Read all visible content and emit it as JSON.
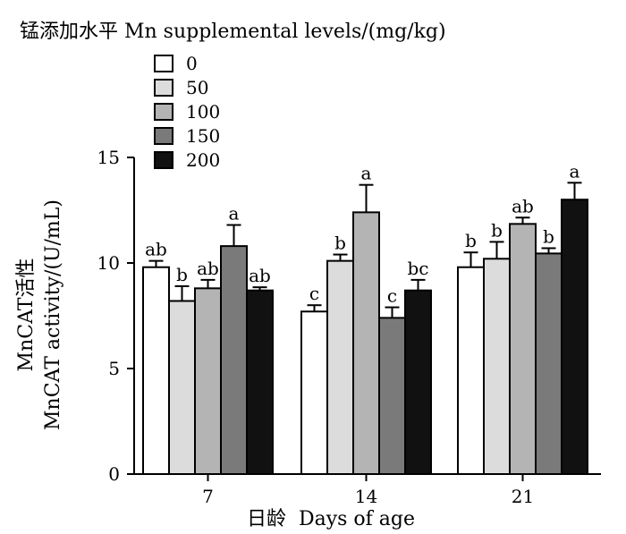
{
  "chart_data": {
    "type": "bar",
    "title": "锰添加水平 Mn supplemental levels/(mg/kg)",
    "ylabel_cn": "MnCAT活性",
    "ylabel_en": "MnCAT activity/(U/mL)",
    "xlabel": "日龄  Days of age",
    "categories": [
      "7",
      "14",
      "21"
    ],
    "ylim": [
      0,
      15
    ],
    "yticks": [
      "0",
      "5",
      "10",
      "15"
    ],
    "grid": false,
    "legend_position": "top-left",
    "series": [
      {
        "name": "0",
        "color": "#ffffff",
        "values": [
          9.8,
          7.7,
          9.8
        ],
        "errors": [
          0.3,
          0.3,
          0.7
        ],
        "letters": [
          "ab",
          "c",
          "b"
        ]
      },
      {
        "name": "50",
        "color": "#dcdcdc",
        "values": [
          8.2,
          10.1,
          10.2
        ],
        "errors": [
          0.7,
          0.3,
          0.8
        ],
        "letters": [
          "b",
          "b",
          "b"
        ]
      },
      {
        "name": "100",
        "color": "#b4b4b4",
        "values": [
          8.8,
          12.4,
          11.85
        ],
        "errors": [
          0.4,
          1.3,
          0.3
        ],
        "letters": [
          "ab",
          "a",
          "ab"
        ]
      },
      {
        "name": "150",
        "color": "#7a7a7a",
        "values": [
          10.8,
          7.4,
          10.45
        ],
        "errors": [
          1.0,
          0.5,
          0.25
        ],
        "letters": [
          "a",
          "c",
          "b"
        ]
      },
      {
        "name": "200",
        "color": "#111111",
        "values": [
          8.7,
          8.7,
          13.0
        ],
        "errors": [
          0.15,
          0.5,
          0.8
        ],
        "letters": [
          "ab",
          "bc",
          "a"
        ]
      }
    ]
  }
}
